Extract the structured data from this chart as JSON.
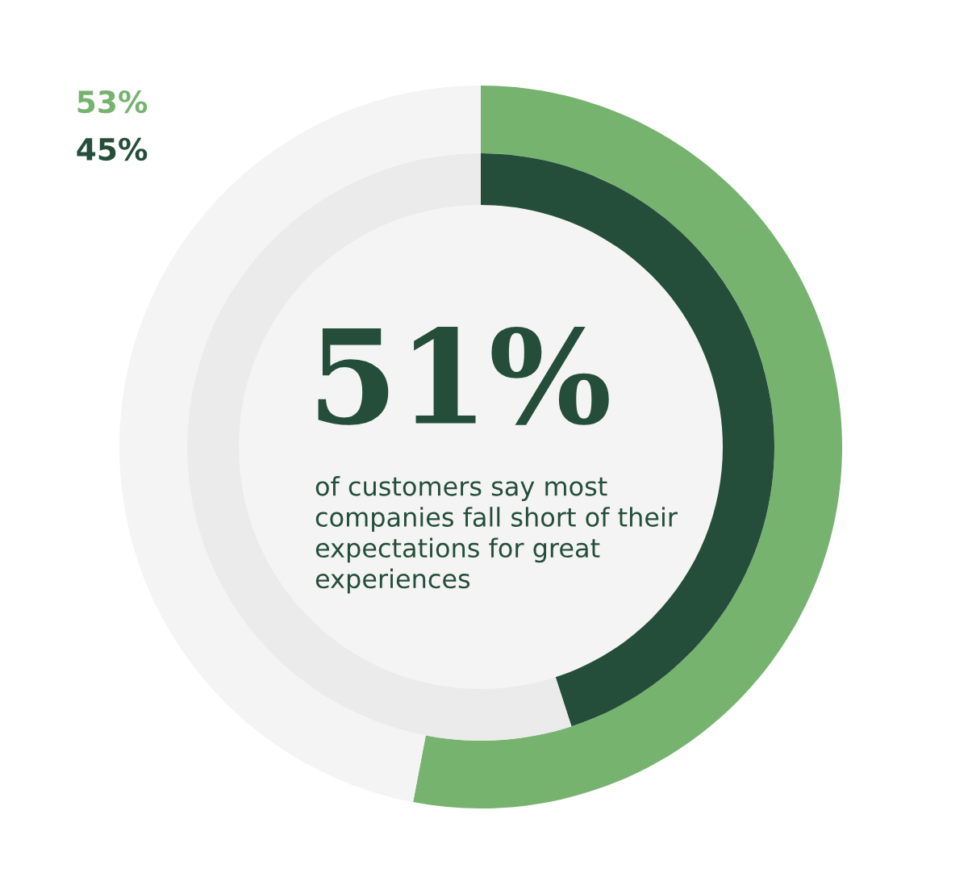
{
  "chart_data": {
    "type": "donut",
    "title": "51%",
    "subtitle": "of customers say most companies fall short of their expectations for great experiences",
    "categories": [
      null,
      null
    ],
    "series": [
      {
        "name": "53%",
        "color": "#76b36f",
        "values": [
          53,
          47
        ],
        "colors": [
          "#76b36f",
          "#f4f4f4"
        ]
      },
      {
        "name": "45%",
        "color": "#244e3a",
        "values": [
          45,
          55
        ],
        "colors": [
          "#244e3a",
          "#ebebeb"
        ]
      }
    ],
    "legend": "top left"
  }
}
